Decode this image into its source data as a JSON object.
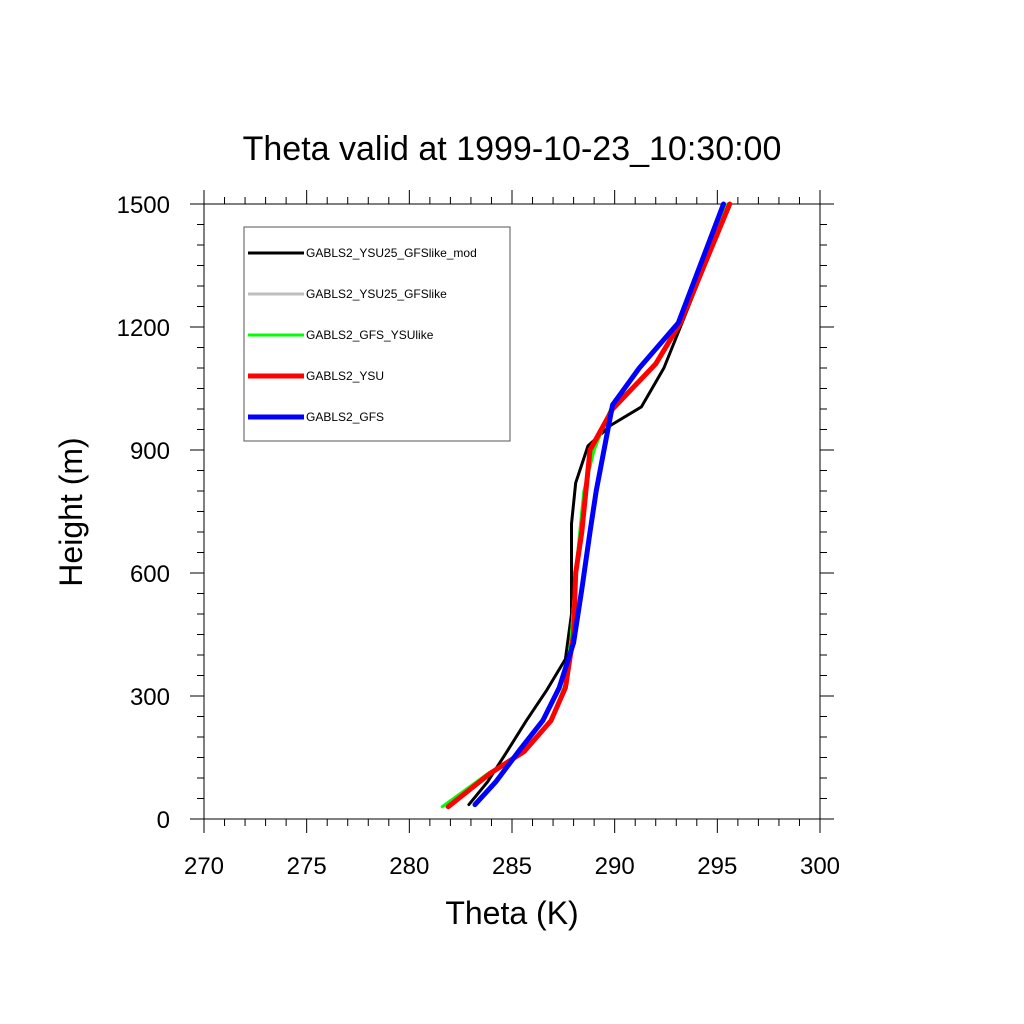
{
  "chart_data": {
    "type": "line",
    "title": "Theta valid at 1999-10-23_10:30:00",
    "xlabel": "Theta (K)",
    "ylabel": "Height (m)",
    "xlim": [
      270,
      300
    ],
    "ylim": [
      0,
      1500
    ],
    "xticks": [
      270,
      275,
      280,
      285,
      290,
      295,
      300
    ],
    "yticks": [
      0,
      300,
      600,
      900,
      1200,
      1500
    ],
    "grid": false,
    "legend_position": "top-left",
    "series": [
      {
        "name": "GABLS2_YSU25_GFSlike_mod",
        "color": "#000000",
        "points": [
          [
            282.9,
            35
          ],
          [
            283.8,
            90
          ],
          [
            284.7,
            160
          ],
          [
            285.7,
            240
          ],
          [
            286.7,
            315
          ],
          [
            287.6,
            390
          ],
          [
            287.9,
            500
          ],
          [
            287.9,
            720
          ],
          [
            288.1,
            820
          ],
          [
            288.7,
            910
          ],
          [
            289.8,
            960
          ],
          [
            291.3,
            1005
          ],
          [
            292.4,
            1100
          ],
          [
            293.2,
            1200
          ],
          [
            294.4,
            1350
          ],
          [
            295.6,
            1500
          ]
        ]
      },
      {
        "name": "GABLS2_YSU25_GFSlike",
        "color": "#bdbdbd",
        "points": [
          [
            281.8,
            30
          ],
          [
            283.9,
            110
          ],
          [
            285.6,
            170
          ],
          [
            286.9,
            240
          ],
          [
            287.7,
            330
          ],
          [
            287.9,
            450
          ],
          [
            288.1,
            600
          ],
          [
            288.5,
            800
          ],
          [
            289.0,
            900
          ],
          [
            289.8,
            1000
          ],
          [
            292.0,
            1110
          ],
          [
            293.2,
            1210
          ],
          [
            295.5,
            1500
          ]
        ]
      },
      {
        "name": "GABLS2_GFS_YSUlike",
        "color": "#00ff00",
        "points": [
          [
            281.6,
            30
          ],
          [
            283.8,
            110
          ],
          [
            285.5,
            160
          ],
          [
            286.9,
            240
          ],
          [
            287.6,
            330
          ],
          [
            287.9,
            450
          ],
          [
            288.1,
            600
          ],
          [
            288.5,
            800
          ],
          [
            289.0,
            900
          ],
          [
            289.8,
            1000
          ],
          [
            292.0,
            1110
          ],
          [
            293.2,
            1210
          ],
          [
            295.5,
            1500
          ]
        ]
      },
      {
        "name": "GABLS2_YSU",
        "color": "#ff0000",
        "points": [
          [
            281.9,
            30
          ],
          [
            283.9,
            110
          ],
          [
            285.6,
            165
          ],
          [
            286.9,
            240
          ],
          [
            287.6,
            320
          ],
          [
            288.0,
            450
          ],
          [
            288.1,
            600
          ],
          [
            288.4,
            700
          ],
          [
            288.8,
            900
          ],
          [
            289.9,
            1000
          ],
          [
            292.0,
            1110
          ],
          [
            293.2,
            1210
          ],
          [
            295.6,
            1500
          ]
        ]
      },
      {
        "name": "GABLS2_GFS",
        "color": "#0000ff",
        "points": [
          [
            283.2,
            35
          ],
          [
            284.2,
            90
          ],
          [
            285.4,
            170
          ],
          [
            286.5,
            240
          ],
          [
            287.3,
            320
          ],
          [
            288.0,
            430
          ],
          [
            288.4,
            560
          ],
          [
            288.8,
            700
          ],
          [
            289.1,
            800
          ],
          [
            289.9,
            1010
          ],
          [
            291.2,
            1100
          ],
          [
            293.1,
            1210
          ],
          [
            295.3,
            1500
          ]
        ]
      }
    ]
  }
}
